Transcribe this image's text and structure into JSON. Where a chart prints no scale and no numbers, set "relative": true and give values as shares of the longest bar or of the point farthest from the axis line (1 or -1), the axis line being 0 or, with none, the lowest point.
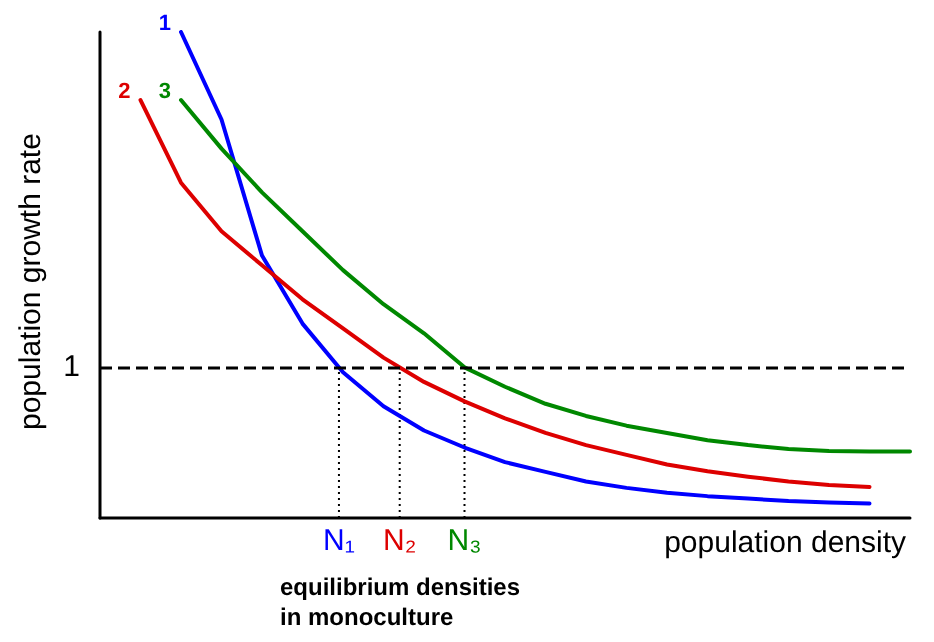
{
  "chart_data": {
    "type": "line",
    "relative": true,
    "xlabel": "population density",
    "ylabel": "population growth rate",
    "categories": [
      null,
      null,
      null,
      null,
      null,
      null,
      null,
      null,
      null,
      null,
      null,
      null,
      null,
      null,
      null,
      null,
      null,
      null,
      null,
      null,
      null
    ],
    "tick_labels": false,
    "grid": false,
    "legend": false,
    "marker": "none",
    "line_style": "solid",
    "series": [
      {
        "name": "1",
        "color": "#0000ff",
        "values": [
          null,
          null,
          1.0,
          0.82,
          0.54,
          0.4,
          0.3,
          0.23,
          0.18,
          0.145,
          0.115,
          0.095,
          0.075,
          0.062,
          0.052,
          0.045,
          0.04,
          0.035,
          0.032,
          0.03,
          null
        ]
      },
      {
        "name": "2",
        "color": "#dd0000",
        "values": [
          null,
          0.86,
          0.69,
          0.59,
          0.52,
          0.45,
          0.39,
          0.33,
          0.28,
          0.24,
          0.205,
          0.175,
          0.15,
          0.13,
          0.11,
          0.096,
          0.085,
          0.075,
          0.068,
          0.064,
          null
        ]
      },
      {
        "name": "3",
        "color": "#008800",
        "values": [
          null,
          null,
          0.86,
          0.76,
          0.67,
          0.59,
          0.51,
          0.44,
          0.38,
          0.31,
          0.27,
          0.235,
          0.21,
          0.19,
          0.175,
          0.16,
          0.15,
          0.142,
          0.138,
          0.137,
          0.137
        ]
      }
    ],
    "ref_lines": [
      {
        "axis": "y",
        "value": 0.31,
        "color": "#000000",
        "line_style": "dashed"
      }
    ],
    "annotations": [
      {
        "text": "N₁",
        "y": 0.31
      },
      {
        "text": "N₂",
        "y": 0.31
      },
      {
        "text": "N₃",
        "y": 0.31
      },
      "1",
      "equilibrium densities in monoculture"
    ]
  }
}
